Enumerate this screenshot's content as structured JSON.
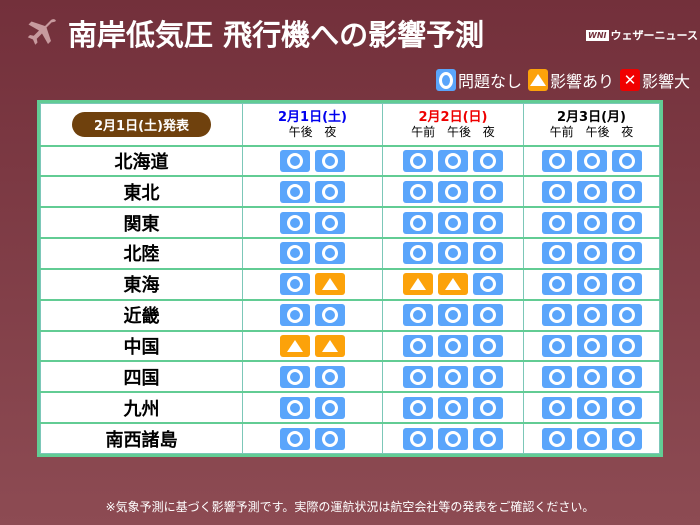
{
  "header": {
    "title": "南岸低気圧 飛行機への影響予測",
    "brand": "ウェザーニュース",
    "brand_mark": "WNI"
  },
  "legend": [
    {
      "status": "o",
      "label": "問題なし"
    },
    {
      "status": "t",
      "label": "影響あり"
    },
    {
      "status": "x",
      "label": "影響大"
    }
  ],
  "colors": {
    "ok": "#5aa5fb",
    "caution": "#fca20a",
    "severe": "#f00000",
    "background": "#73303b",
    "border": "#62cc94"
  },
  "table": {
    "issued": "2月1日(土)発表",
    "days": [
      {
        "label": "2月1日(土)",
        "color": "#0000ee",
        "slots": "午後 夜"
      },
      {
        "label": "2月2日(日)",
        "color": "#ee0000",
        "slots": "午前 午後 夜"
      },
      {
        "label": "2月3日(月)",
        "color": "#000000",
        "slots": "午前 午後 夜"
      }
    ],
    "rows": [
      {
        "region": "北海道",
        "d": [
          [
            "o",
            "o"
          ],
          [
            "o",
            "o",
            "o"
          ],
          [
            "o",
            "o",
            "o"
          ]
        ]
      },
      {
        "region": "東北",
        "d": [
          [
            "o",
            "o"
          ],
          [
            "o",
            "o",
            "o"
          ],
          [
            "o",
            "o",
            "o"
          ]
        ]
      },
      {
        "region": "関東",
        "d": [
          [
            "o",
            "o"
          ],
          [
            "o",
            "o",
            "o"
          ],
          [
            "o",
            "o",
            "o"
          ]
        ]
      },
      {
        "region": "北陸",
        "d": [
          [
            "o",
            "o"
          ],
          [
            "o",
            "o",
            "o"
          ],
          [
            "o",
            "o",
            "o"
          ]
        ]
      },
      {
        "region": "東海",
        "d": [
          [
            "o",
            "t"
          ],
          [
            "t",
            "t",
            "o"
          ],
          [
            "o",
            "o",
            "o"
          ]
        ]
      },
      {
        "region": "近畿",
        "d": [
          [
            "o",
            "o"
          ],
          [
            "o",
            "o",
            "o"
          ],
          [
            "o",
            "o",
            "o"
          ]
        ]
      },
      {
        "region": "中国",
        "d": [
          [
            "t",
            "t"
          ],
          [
            "o",
            "o",
            "o"
          ],
          [
            "o",
            "o",
            "o"
          ]
        ]
      },
      {
        "region": "四国",
        "d": [
          [
            "o",
            "o"
          ],
          [
            "o",
            "o",
            "o"
          ],
          [
            "o",
            "o",
            "o"
          ]
        ]
      },
      {
        "region": "九州",
        "d": [
          [
            "o",
            "o"
          ],
          [
            "o",
            "o",
            "o"
          ],
          [
            "o",
            "o",
            "o"
          ]
        ]
      },
      {
        "region": "南西諸島",
        "d": [
          [
            "o",
            "o"
          ],
          [
            "o",
            "o",
            "o"
          ],
          [
            "o",
            "o",
            "o"
          ]
        ]
      }
    ]
  },
  "footer": "※気象予測に基づく影響予測です。実際の運航状況は航空会社等の発表をご確認ください。"
}
